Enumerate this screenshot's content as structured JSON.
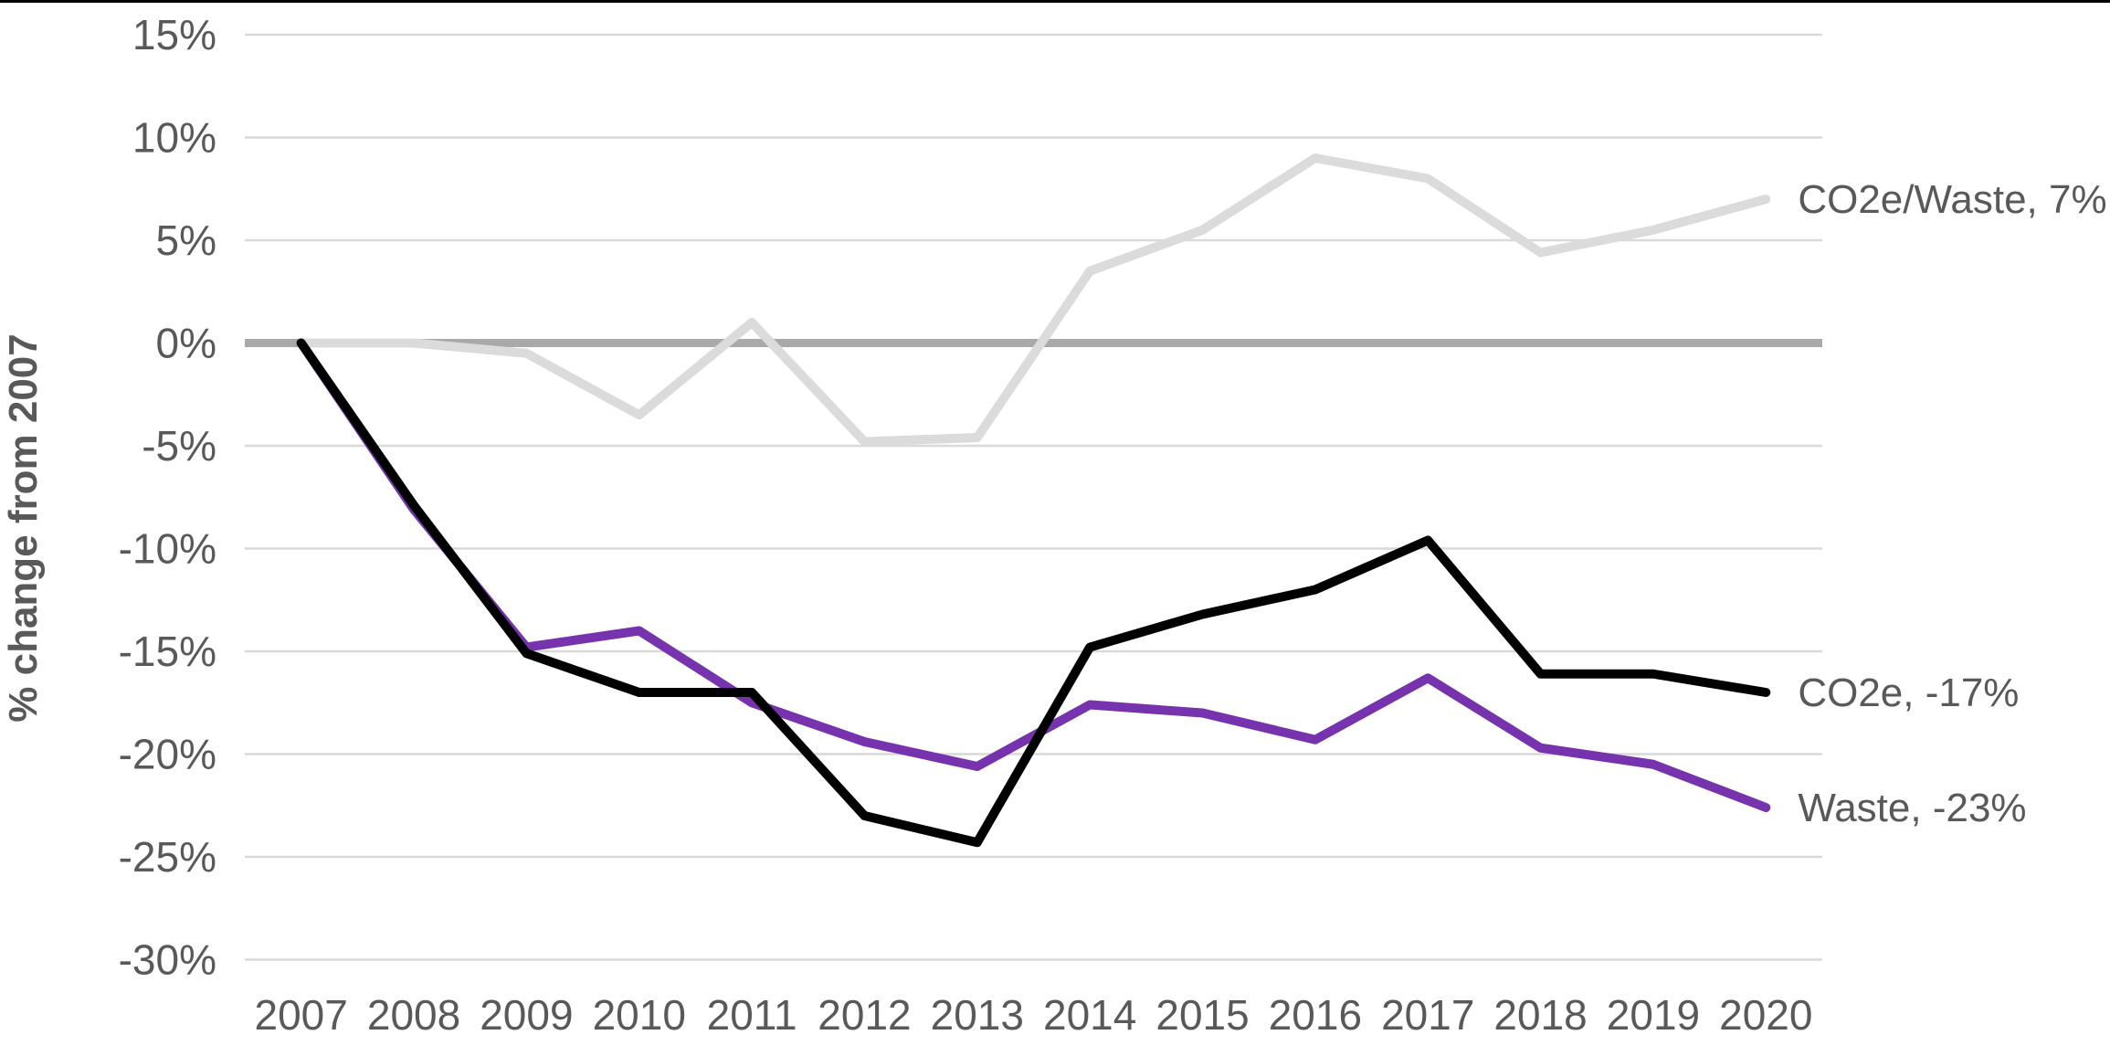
{
  "chart_data": {
    "type": "line",
    "title": "",
    "ylabel": "% change from 2007",
    "xlabel": "",
    "ylim": [
      -30,
      15
    ],
    "grid": "horizontal",
    "zero_line": true,
    "legend_position": "right-end-of-line",
    "x_categories": [
      "2007",
      "2008",
      "2009",
      "2010",
      "2011",
      "2012",
      "2013",
      "2014",
      "2015",
      "2016",
      "2017",
      "2018",
      "2019",
      "2020"
    ],
    "y_ticks": [
      {
        "value": 15,
        "label": "15%"
      },
      {
        "value": 10,
        "label": "10%"
      },
      {
        "value": 5,
        "label": "5%"
      },
      {
        "value": 0,
        "label": "0%"
      },
      {
        "value": -5,
        "label": "-5%"
      },
      {
        "value": -10,
        "label": "-10%"
      },
      {
        "value": -15,
        "label": "-15%"
      },
      {
        "value": -20,
        "label": "-20%"
      },
      {
        "value": -25,
        "label": "-25%"
      },
      {
        "value": -30,
        "label": "-30%"
      }
    ],
    "series": [
      {
        "name": "CO2e/Waste",
        "color": "#DBDBDB",
        "end_label": "CO2e/Waste, 7%",
        "values": [
          0,
          0,
          -0.5,
          -3.5,
          1,
          -4.8,
          -4.6,
          3.5,
          5.5,
          9,
          8,
          4.4,
          5.5,
          7
        ]
      },
      {
        "name": "Waste",
        "color": "#7733AD",
        "end_label": "Waste, -23%",
        "values": [
          0,
          -8.1,
          -14.8,
          -14,
          -17.5,
          -19.4,
          -20.6,
          -17.6,
          -18,
          -19.3,
          -16.3,
          -19.7,
          -20.5,
          -22.6
        ]
      },
      {
        "name": "CO2e",
        "color": "#000000",
        "end_label": "CO2e, -17%",
        "values": [
          0,
          -7.9,
          -15.1,
          -17,
          -17,
          -23,
          -24.3,
          -14.8,
          -13.2,
          -12,
          -9.6,
          -16.1,
          -16.1,
          -17
        ]
      }
    ],
    "colors": {
      "text": "#595959",
      "gridline": "#D9D9D9",
      "zero_line": "#A9A9A9",
      "background": "#FFFFFF"
    }
  }
}
